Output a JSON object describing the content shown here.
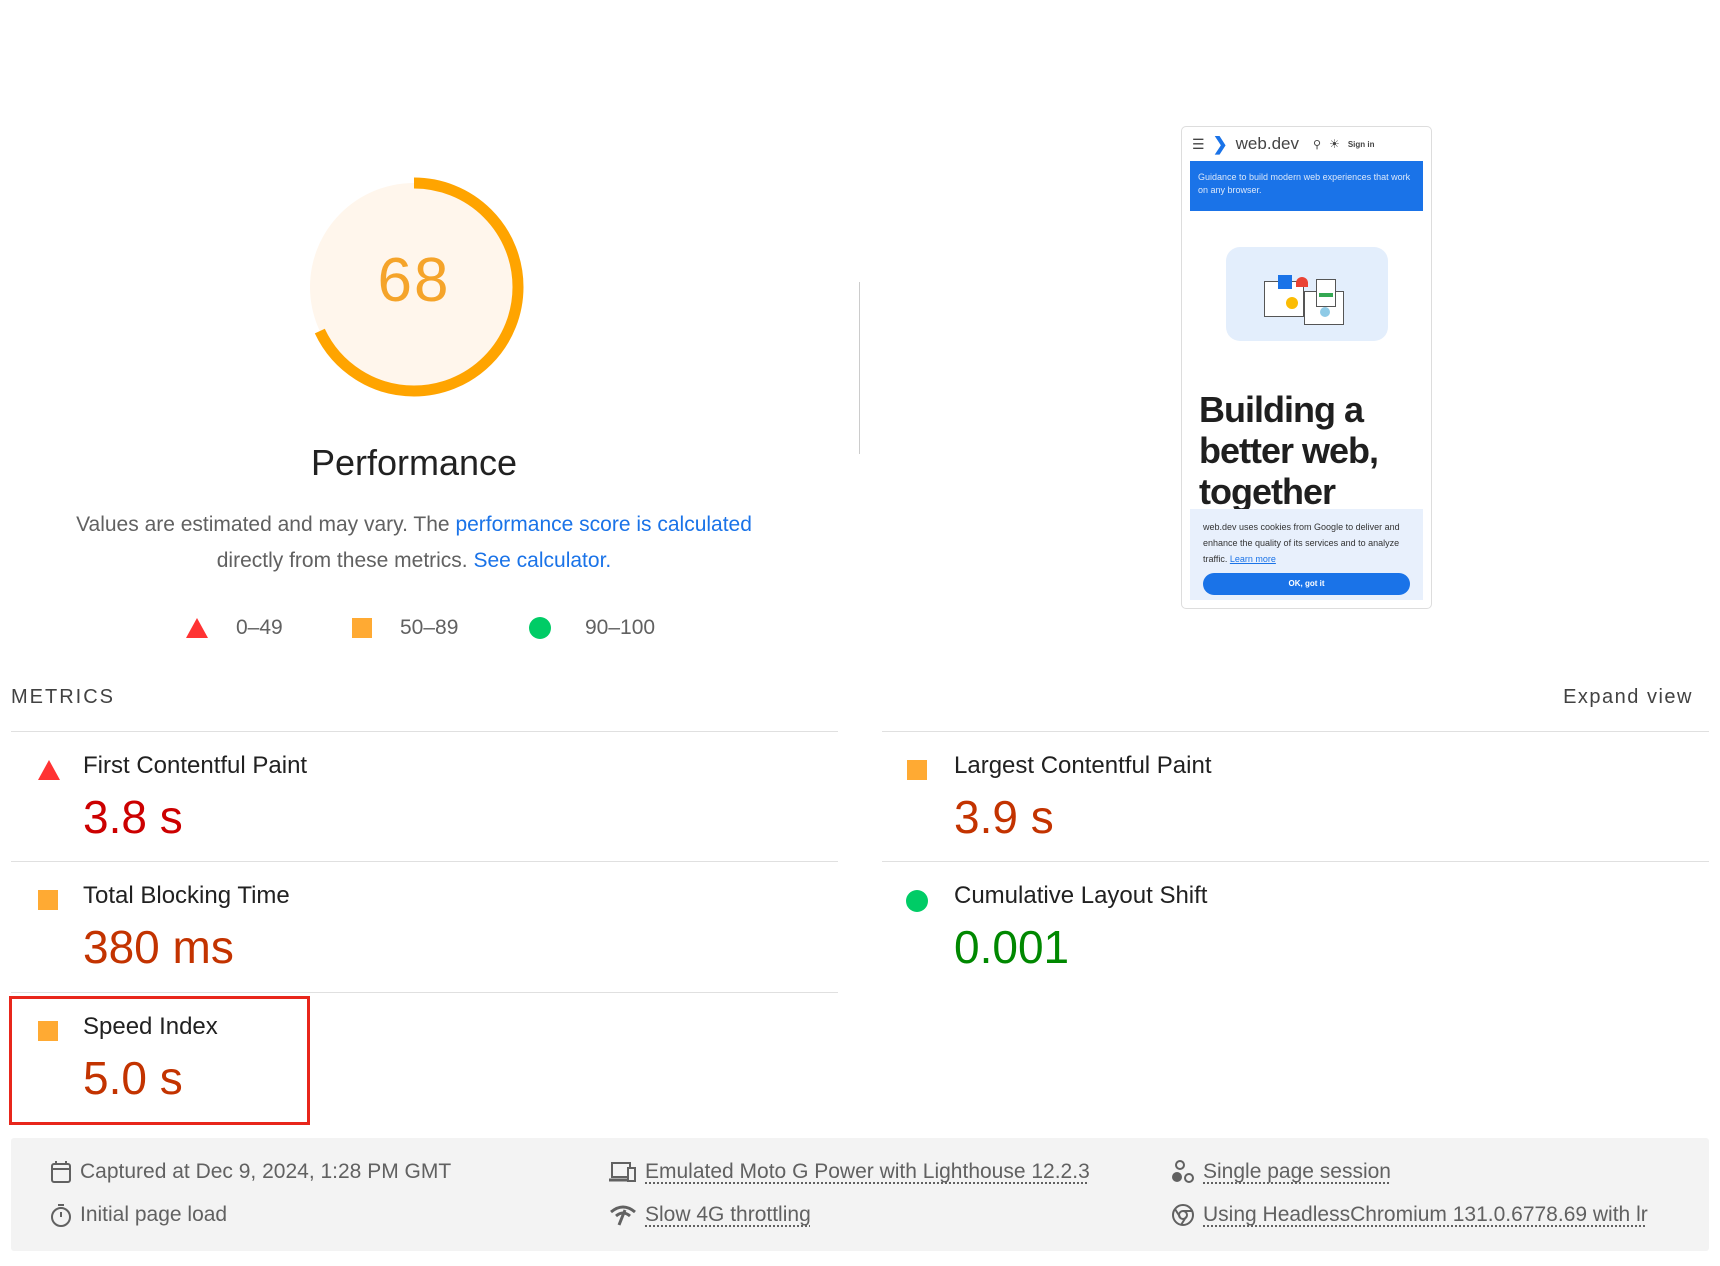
{
  "gauge": {
    "score": 68,
    "label": "Performance",
    "color": "#ffa400"
  },
  "description": {
    "line1_text": "Values are estimated and may vary. The ",
    "line1_link": "performance score is calculated",
    "line2_text": "directly from these metrics. ",
    "line2_link": "See calculator."
  },
  "legend": [
    {
      "icon": "triangle-red",
      "range": "0–49"
    },
    {
      "icon": "square-orange",
      "range": "50–89"
    },
    {
      "icon": "circle-green",
      "range": "90–100"
    }
  ],
  "thumbnail": {
    "brand": "web.dev",
    "sign_in": "Sign in",
    "banner": "Guidance to build modern web experiences that work on any browser.",
    "heading": "Building a better web, together",
    "cookie_text": "web.dev uses cookies from Google to deliver and enhance the quality of its services and to analyze traffic.",
    "learn_more": "Learn more",
    "ok_button": "OK, got it"
  },
  "metrics": {
    "header": "METRICS",
    "expand": "Expand view",
    "items": [
      {
        "title": "First Contentful Paint",
        "value": "3.8 s",
        "rating": "fail"
      },
      {
        "title": "Largest Contentful Paint",
        "value": "3.9 s",
        "rating": "average"
      },
      {
        "title": "Total Blocking Time",
        "value": "380 ms",
        "rating": "average"
      },
      {
        "title": "Cumulative Layout Shift",
        "value": "0.001",
        "rating": "pass"
      },
      {
        "title": "Speed Index",
        "value": "5.0 s",
        "rating": "average",
        "highlighted": true
      }
    ]
  },
  "footer": {
    "captured": "Captured at Dec 9, 2024, 1:28 PM GMT",
    "page_load": "Initial page load",
    "device": "Emulated Moto G Power with Lighthouse 12.2.3",
    "throttling": "Slow 4G throttling",
    "session": "Single page session",
    "browser": "Using HeadlessChromium 131.0.6778.69 with lr"
  }
}
